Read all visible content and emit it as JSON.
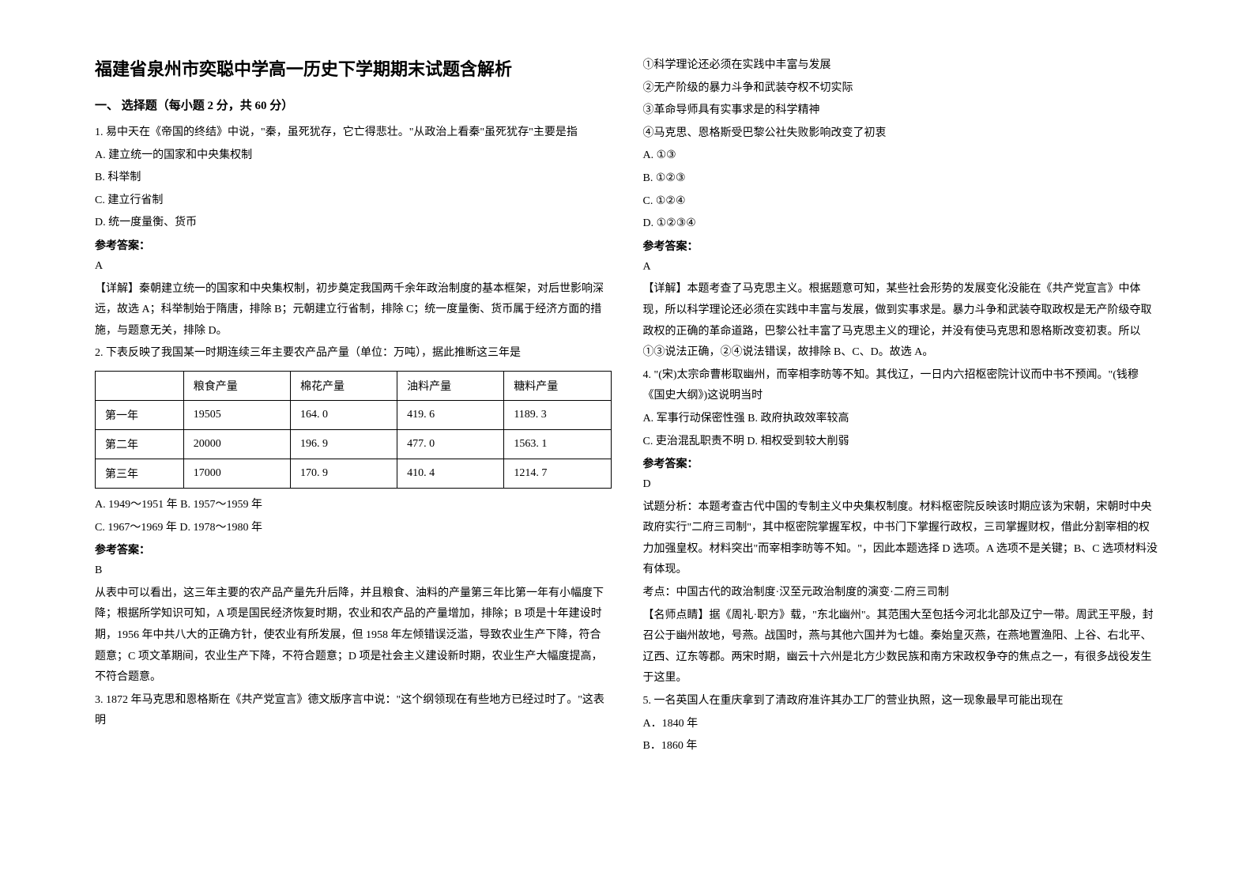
{
  "left": {
    "title": "福建省泉州市奕聪中学高一历史下学期期末试题含解析",
    "section": "一、 选择题（每小题 2 分，共 60 分）",
    "q1": {
      "stem": "1. 易中天在《帝国的终结》中说，\"秦，虽死犹存，它亡得悲壮。\"从政治上看秦\"虽死犹存\"主要是指",
      "a": "A. 建立统一的国家和中央集权制",
      "b": "B. 科举制",
      "c": "C. 建立行省制",
      "d": "D. 统一度量衡、货币",
      "ans_label": "参考答案：",
      "ans": "A",
      "explain": "【详解】秦朝建立统一的国家和中央集权制，初步奠定我国两千余年政治制度的基本框架，对后世影响深远，故选 A；科举制始于隋唐，排除 B；元朝建立行省制，排除 C；统一度量衡、货币属于经济方面的措施，与题意无关，排除 D。"
    },
    "q2": {
      "stem": "2. 下表反映了我国某一时期连续三年主要农产品产量（单位：万吨），据此推断这三年是",
      "table": {
        "headers": [
          "",
          "粮食产量",
          "棉花产量",
          "油料产量",
          "糖料产量"
        ],
        "rows": [
          [
            "第一年",
            "19505",
            "164. 0",
            "419. 6",
            "1189. 3"
          ],
          [
            "第二年",
            "20000",
            "196. 9",
            "477. 0",
            "1563. 1"
          ],
          [
            "第三年",
            "17000",
            "170. 9",
            "410. 4",
            "1214. 7"
          ]
        ]
      },
      "opts": "A. 1949～1951 年 B. 1957～1959 年",
      "opts2": "C. 1967～1969 年 D. 1978～1980 年",
      "ans_label": "参考答案：",
      "ans": "B",
      "explain": "从表中可以看出，这三年主要的农产品产量先升后降，并且粮食、油料的产量第三年比第一年有小幅度下降；根据所学知识可知，A 项是国民经济恢复时期，农业和农产品的产量增加，排除；B 项是十年建设时期，1956 年中共八大的正确方针，使农业有所发展，但 1958 年左倾错误泛滥，导致农业生产下降，符合题意；C 项文革期间，农业生产下降，不符合题意；D 项是社会主义建设新时期，农业生产大幅度提高，不符合题意。"
    },
    "q3": {
      "stem": "3. 1872 年马克思和恩格斯在《共产党宣言》德文版序言中说：\"这个纲领现在有些地方已经过时了。\"这表明"
    }
  },
  "right": {
    "q3opts": {
      "o1": "①科学理论还必须在实践中丰富与发展",
      "o2": "②无产阶级的暴力斗争和武装夺权不切实际",
      "o3": "③革命导师具有实事求是的科学精神",
      "o4": "④马克思、恩格斯受巴黎公社失败影响改变了初衷",
      "a": "A. ①③",
      "b": "B. ①②③",
      "c": "C. ①②④",
      "d": "D. ①②③④",
      "ans_label": "参考答案：",
      "ans": "A",
      "explain": "【详解】本题考查了马克思主义。根据题意可知，某些社会形势的发展变化没能在《共产党宣言》中体现，所以科学理论还必须在实践中丰富与发展，做到实事求是。暴力斗争和武装夺取政权是无产阶级夺取政权的正确的革命道路，巴黎公社丰富了马克思主义的理论，并没有使马克思和恩格斯改变初衷。所以①③说法正确，②④说法错误，故排除 B、C、D。故选 A。"
    },
    "q4": {
      "stem": "4. \"(宋)太宗命曹彬取幽州，而宰相李昉等不知。其伐辽，一日内六招枢密院计议而中书不预闻。\"(钱穆《国史大纲》)这说明当时",
      "opts1": "A. 军事行动保密性强 B. 政府执政效率较高",
      "opts2": "C. 吏治混乱职责不明 D. 相权受到较大削弱",
      "ans_label": "参考答案：",
      "ans": "D",
      "explain1": "试题分析：本题考查古代中国的专制主义中央集权制度。材料枢密院反映该时期应该为宋朝，宋朝时中央政府实行\"二府三司制\"，其中枢密院掌握军权，中书门下掌握行政权，三司掌握财权，借此分割宰相的权力加强皇权。材料突出\"而宰相李昉等不知。\"，因此本题选择 D 选项。A 选项不是关键；B、C 选项材料没有体现。",
      "explain2": "考点：中国古代的政治制度·汉至元政治制度的演变·二府三司制",
      "explain3": "【名师点睛】据《周礼·职方》载，\"东北幽州\"。其范围大至包括今河北北部及辽宁一带。周武王平殷，封召公于幽州故地，号燕。战国时，燕与其他六国并为七雄。秦始皇灭燕，在燕地置渔阳、上谷、右北平、辽西、辽东等郡。两宋时期，幽云十六州是北方少数民族和南方宋政权争夺的焦点之一，有很多战役发生于这里。"
    },
    "q5": {
      "stem": "5. 一名英国人在重庆拿到了清政府准许其办工厂的营业执照，这一现象最早可能出现在",
      "a": "A．1840 年",
      "b": "B．1860 年"
    }
  }
}
